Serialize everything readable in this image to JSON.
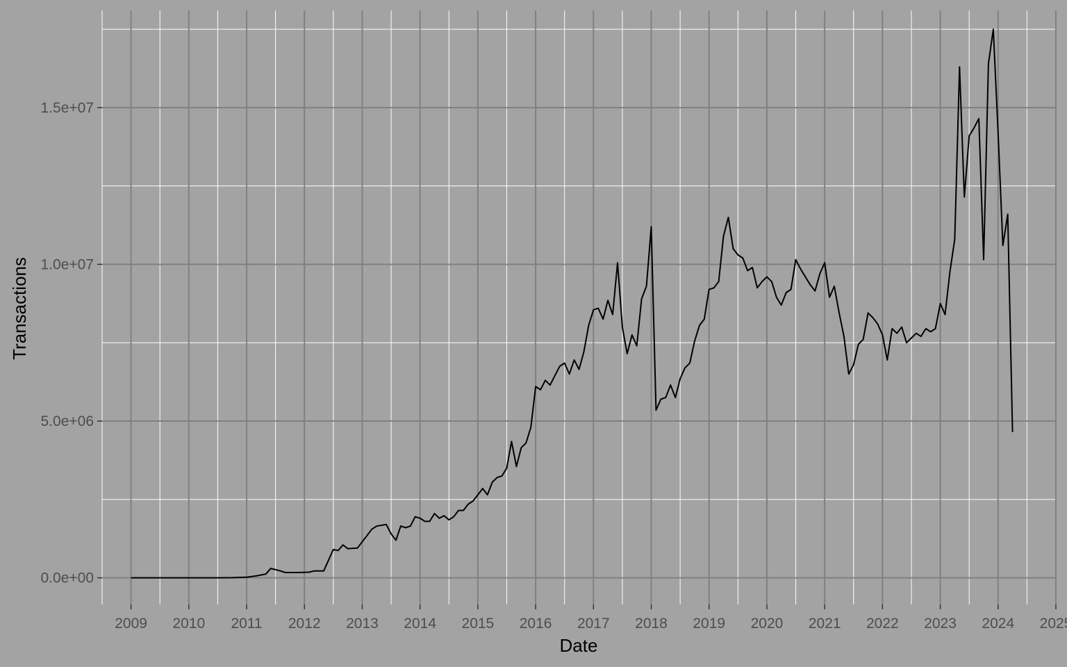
{
  "chart_data": {
    "type": "line",
    "title": "",
    "xlabel": "Date",
    "ylabel": "Transactions",
    "x_ticks": [
      "2009",
      "2010",
      "2011",
      "2012",
      "2013",
      "2014",
      "2015",
      "2016",
      "2017",
      "2018",
      "2019",
      "2020",
      "2021",
      "2022",
      "2023",
      "2024",
      "2025"
    ],
    "y_ticks": [
      {
        "value": 0,
        "label": "0.0e+00"
      },
      {
        "value": 5000000,
        "label": "5.0e+06"
      },
      {
        "value": 10000000,
        "label": "1.0e+07"
      },
      {
        "value": 15000000,
        "label": "1.5e+07"
      }
    ],
    "xlim": [
      "2008-07",
      "2025-01"
    ],
    "ylim": [
      -850000,
      18100000
    ],
    "grid": true,
    "colors": {
      "background": "#a3a3a3",
      "major_grid": "#808080",
      "minor_grid": "#ffffff",
      "line": "#000000",
      "tick_label": "#4d4d4d"
    },
    "series": [
      {
        "x": [
          "2009-01",
          "2009-07",
          "2010-01",
          "2010-07",
          "2010-10",
          "2011-01",
          "2011-03",
          "2011-05",
          "2011-06",
          "2011-08",
          "2011-09",
          "2011-12",
          "2012-02",
          "2012-03",
          "2012-05",
          "2012-07",
          "2012-08",
          "2012-09",
          "2012-10",
          "2012-12",
          "2013-02",
          "2013-03",
          "2013-04",
          "2013-06",
          "2013-07",
          "2013-08",
          "2013-09",
          "2013-10",
          "2013-11",
          "2013-12",
          "2014-01",
          "2014-02",
          "2014-03",
          "2014-04",
          "2014-05",
          "2014-06",
          "2014-07",
          "2014-08",
          "2014-09",
          "2014-10",
          "2014-11",
          "2014-12",
          "2015-01",
          "2015-02",
          "2015-03",
          "2015-04",
          "2015-05",
          "2015-06",
          "2015-07",
          "2015-08",
          "2015-09",
          "2015-10",
          "2015-11",
          "2015-12",
          "2016-01",
          "2016-02",
          "2016-03",
          "2016-04",
          "2016-05",
          "2016-06",
          "2016-07",
          "2016-08",
          "2016-09",
          "2016-10",
          "2016-11",
          "2016-12",
          "2017-01",
          "2017-02",
          "2017-03",
          "2017-04",
          "2017-05",
          "2017-06",
          "2017-07",
          "2017-08",
          "2017-09",
          "2017-10",
          "2017-11",
          "2017-12",
          "2018-01",
          "2018-02",
          "2018-03",
          "2018-04",
          "2018-05",
          "2018-06",
          "2018-07",
          "2018-08",
          "2018-09",
          "2018-10",
          "2018-11",
          "2018-12",
          "2019-01",
          "2019-02",
          "2019-03",
          "2019-04",
          "2019-05",
          "2019-06",
          "2019-07",
          "2019-08",
          "2019-09",
          "2019-10",
          "2019-11",
          "2019-12",
          "2020-01",
          "2020-02",
          "2020-03",
          "2020-04",
          "2020-05",
          "2020-06",
          "2020-07",
          "2020-08",
          "2020-09",
          "2020-10",
          "2020-11",
          "2020-12",
          "2021-01",
          "2021-02",
          "2021-03",
          "2021-04",
          "2021-05",
          "2021-06",
          "2021-07",
          "2021-08",
          "2021-09",
          "2021-10",
          "2021-11",
          "2021-12",
          "2022-01",
          "2022-02",
          "2022-03",
          "2022-04",
          "2022-05",
          "2022-06",
          "2022-07",
          "2022-08",
          "2022-09",
          "2022-10",
          "2022-11",
          "2022-12",
          "2023-01",
          "2023-02",
          "2023-03",
          "2023-04",
          "2023-05",
          "2023-06",
          "2023-07",
          "2023-08",
          "2023-09",
          "2023-10",
          "2023-11",
          "2023-12",
          "2024-01",
          "2024-02",
          "2024-03",
          "2024-04"
        ],
        "values": [
          0,
          0,
          0,
          0,
          5000,
          20000,
          60000,
          120000,
          300000,
          220000,
          170000,
          170000,
          180000,
          220000,
          220000,
          900000,
          870000,
          1050000,
          930000,
          950000,
          1350000,
          1550000,
          1650000,
          1700000,
          1400000,
          1200000,
          1650000,
          1600000,
          1650000,
          1950000,
          1900000,
          1800000,
          1800000,
          2050000,
          1900000,
          1980000,
          1850000,
          1950000,
          2150000,
          2150000,
          2350000,
          2450000,
          2650000,
          2850000,
          2650000,
          3050000,
          3200000,
          3250000,
          3500000,
          4350000,
          3550000,
          4150000,
          4300000,
          4800000,
          6100000,
          6000000,
          6300000,
          6150000,
          6450000,
          6750000,
          6850000,
          6500000,
          6950000,
          6650000,
          7200000,
          8050000,
          8550000,
          8600000,
          8250000,
          8850000,
          8400000,
          10050000,
          8000000,
          7150000,
          7750000,
          7400000,
          8900000,
          9300000,
          11200000,
          5350000,
          5700000,
          5750000,
          6150000,
          5750000,
          6350000,
          6700000,
          6850000,
          7550000,
          8050000,
          8250000,
          9200000,
          9250000,
          9450000,
          10900000,
          11500000,
          10500000,
          10300000,
          10200000,
          9800000,
          9900000,
          9250000,
          9450000,
          9600000,
          9450000,
          8950000,
          8700000,
          9100000,
          9200000,
          10150000,
          9850000,
          9600000,
          9350000,
          9150000,
          9700000,
          10050000,
          8950000,
          9300000,
          8450000,
          7700000,
          6500000,
          6800000,
          7450000,
          7600000,
          8450000,
          8300000,
          8100000,
          7750000,
          6950000,
          7950000,
          7800000,
          8000000,
          7500000,
          7650000,
          7800000,
          7700000,
          7950000,
          7850000,
          7950000,
          8750000,
          8400000,
          9750000,
          10800000,
          16300000,
          12150000,
          14100000,
          14350000,
          14650000,
          10150000,
          16400000,
          17500000,
          14200000,
          10600000,
          11600000,
          4650000
        ]
      }
    ]
  }
}
